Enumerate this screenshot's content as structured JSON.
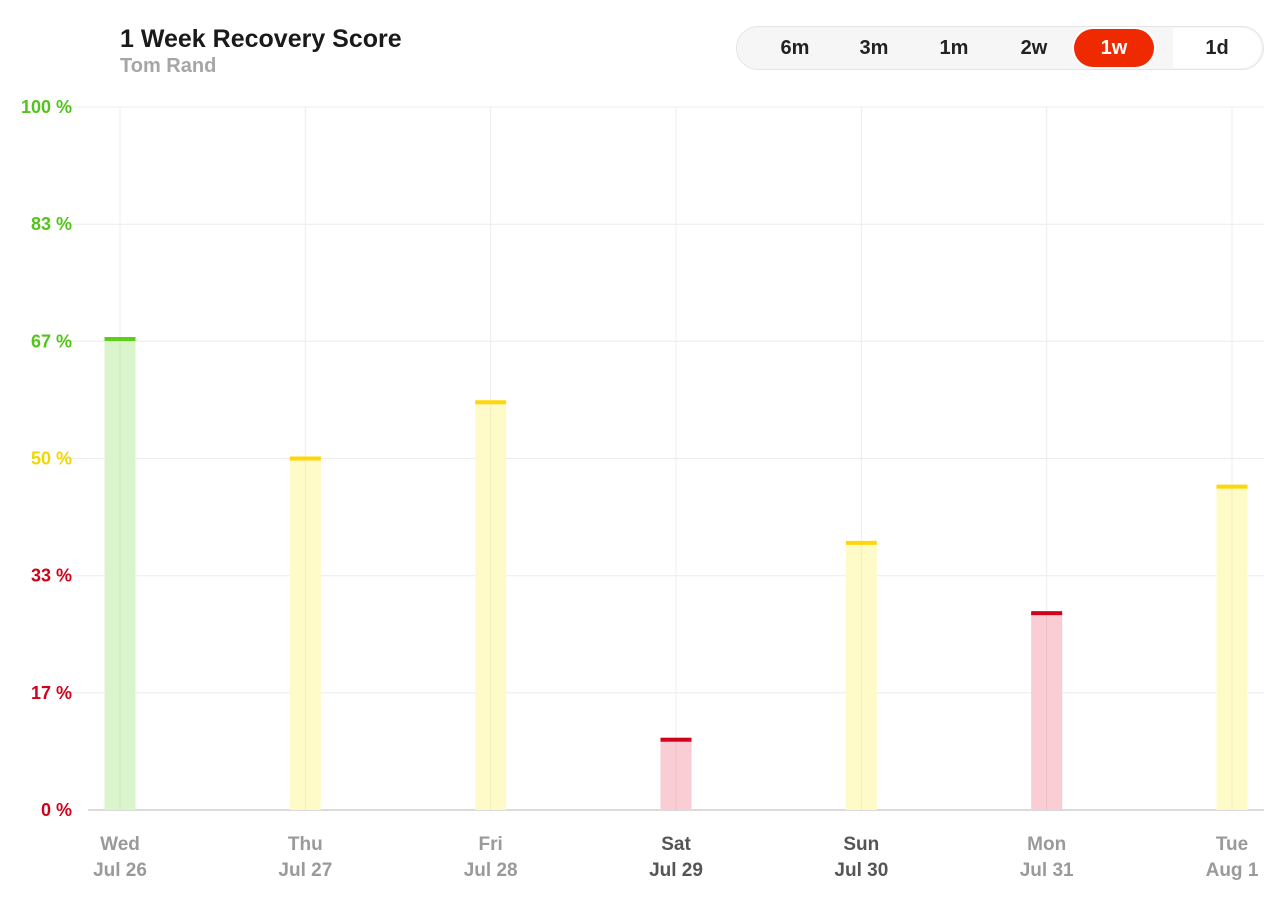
{
  "header": {
    "title": "1 Week Recovery Score",
    "subtitle": "Tom Rand"
  },
  "range_selector": {
    "options": [
      "6m",
      "3m",
      "1m",
      "2w",
      "1w",
      "1d"
    ],
    "selected": "1w"
  },
  "colors": {
    "green": "#5ccf1a",
    "green_fill": "#daf5cc",
    "yellow": "#ffd60a",
    "yellow_fill": "#fffbc9",
    "red": "#d0021b",
    "red_fill": "#f9cdd3",
    "tick_green": "#52c41a",
    "tick_yellow": "#f2d600",
    "tick_red": "#d0021b"
  },
  "chart_data": {
    "type": "bar",
    "title": "1 Week Recovery Score",
    "ylim": [
      0,
      100
    ],
    "yticks": [
      "0 %",
      "17 %",
      "33 %",
      "50 %",
      "67 %",
      "83 %",
      "100 %"
    ],
    "ytick_values": [
      0,
      16.67,
      33.33,
      50,
      66.67,
      83.33,
      100
    ],
    "categories": [
      {
        "day": "Wed",
        "date": "Jul 26"
      },
      {
        "day": "Thu",
        "date": "Jul 27"
      },
      {
        "day": "Fri",
        "date": "Jul 28"
      },
      {
        "day": "Sat",
        "date": "Jul 29"
      },
      {
        "day": "Sun",
        "date": "Jul 30"
      },
      {
        "day": "Mon",
        "date": "Jul 31"
      },
      {
        "day": "Tue",
        "date": "Aug 1"
      }
    ],
    "values": [
      67,
      50,
      58,
      10,
      38,
      28,
      46
    ],
    "grid": true
  }
}
